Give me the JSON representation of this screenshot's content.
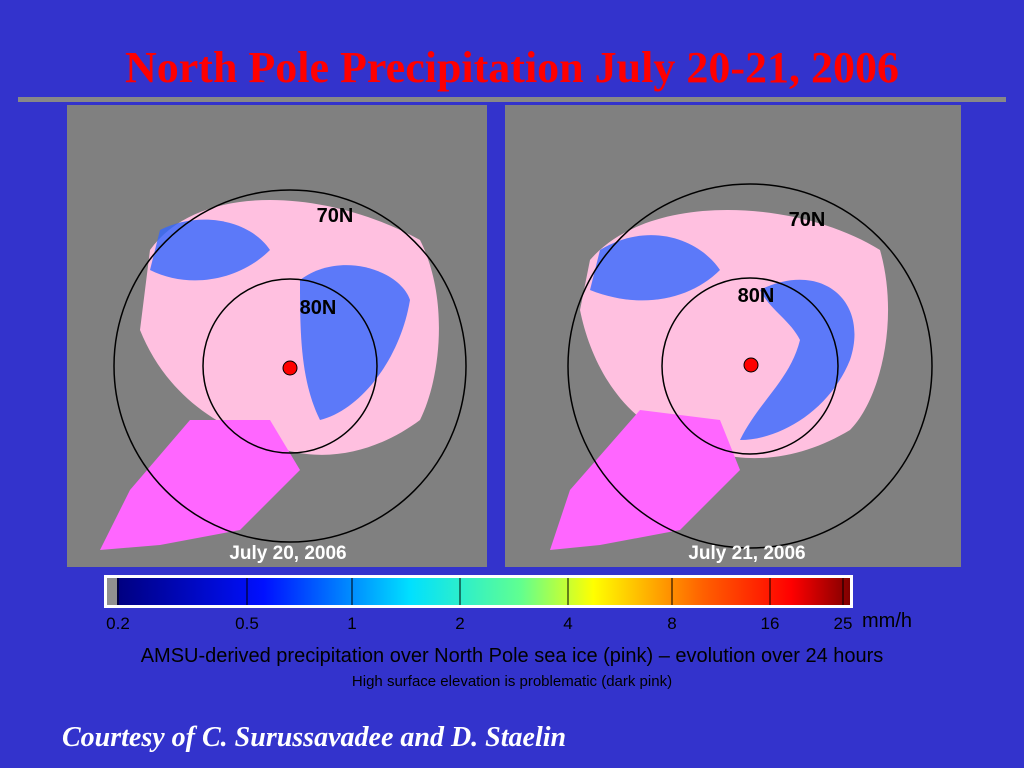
{
  "header": {
    "title": "North Pole Precipitation July 20-21, 2006"
  },
  "maps": [
    {
      "date": "July 20, 2006",
      "labels": [
        "70N",
        "80N"
      ]
    },
    {
      "date": "July 21, 2006",
      "labels": [
        "70N",
        "80N"
      ]
    }
  ],
  "colorbar": {
    "ticks": [
      "0.2",
      "0.5",
      "1",
      "2",
      "4",
      "8",
      "16",
      "25"
    ],
    "unit": "mm/h"
  },
  "caption": "AMSU-derived precipitation over North Pole sea ice (pink) – evolution over 24 hours",
  "note": "High surface elevation is problematic (dark pink)",
  "credit": "Courtesy of C. Surussavadee and D. Staelin"
}
